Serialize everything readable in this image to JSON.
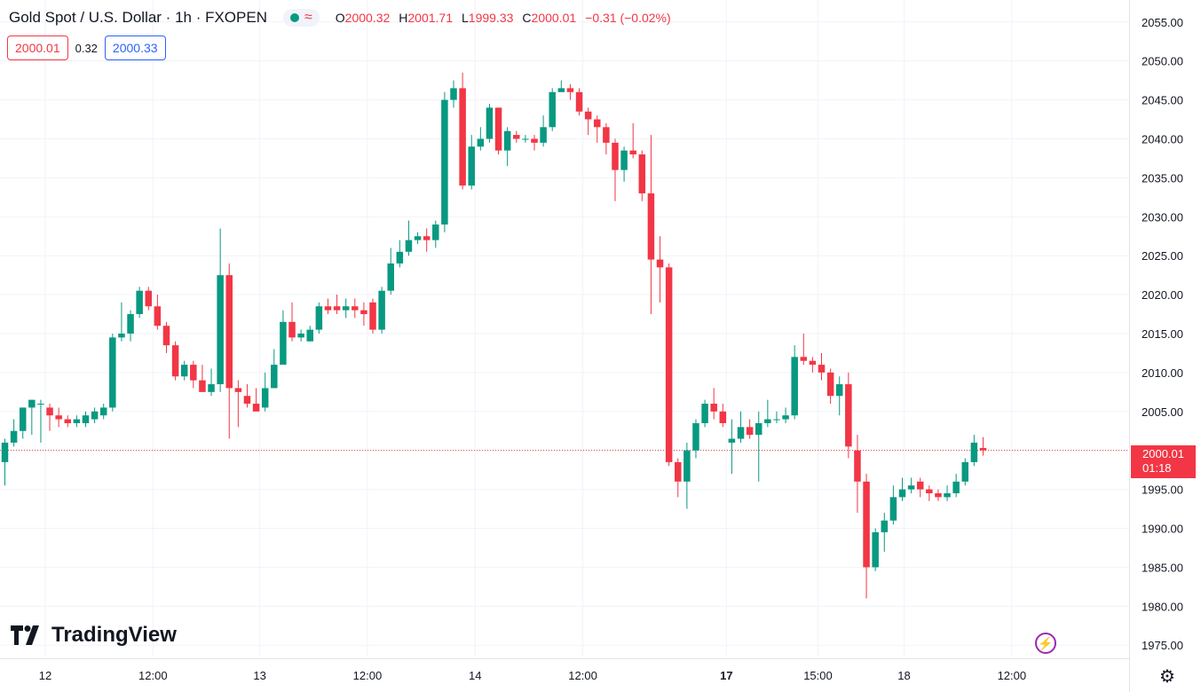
{
  "header": {
    "symbol": "Gold Spot / U.S. Dollar · 1h · FXOPEN",
    "open_label": "O",
    "open": "2000.32",
    "high_label": "H",
    "high": "2001.71",
    "low_label": "L",
    "low": "1999.33",
    "close_label": "C",
    "close": "2000.01",
    "change": "−0.31 (−0.02%)",
    "status_color": "#089981",
    "wave_icon": "≈"
  },
  "trade": {
    "sell": "2000.01",
    "spread": "0.32",
    "buy": "2000.33"
  },
  "price_tag": {
    "price": "2000.01",
    "countdown": "01:18"
  },
  "logo": "TradingView",
  "colors": {
    "up": "#089981",
    "down": "#f23645",
    "grid": "#f0f3fa",
    "text": "#131722"
  },
  "chart_data": {
    "type": "candlestick",
    "title": "Gold Spot / U.S. Dollar · 1h · FXOPEN",
    "ylim": [
      1974,
      2056
    ],
    "y_ticks": [
      1975,
      1980,
      1985,
      1990,
      1995,
      2000,
      2005,
      2010,
      2015,
      2020,
      2025,
      2030,
      2035,
      2040,
      2045,
      2050,
      2055
    ],
    "x_ticks": [
      {
        "label": "12",
        "i": 4.5,
        "bold": false
      },
      {
        "label": "12:00",
        "i": 16.5,
        "bold": false
      },
      {
        "label": "13",
        "i": 28.4,
        "bold": false
      },
      {
        "label": "12:00",
        "i": 40.4,
        "bold": false
      },
      {
        "label": "14",
        "i": 52.4,
        "bold": false
      },
      {
        "label": "12:00",
        "i": 64.4,
        "bold": false
      },
      {
        "label": "17",
        "i": 80.4,
        "bold": true
      },
      {
        "label": "15:00",
        "i": 90.6,
        "bold": false
      },
      {
        "label": "18",
        "i": 100.2,
        "bold": false
      },
      {
        "label": "12:00",
        "i": 112.2,
        "bold": false
      }
    ],
    "current_price": 2000.01,
    "candles": [
      [
        1998.5,
        2001.0,
        1995.5,
        2001.5
      ],
      [
        2001.0,
        2002.5,
        2000.5,
        2004.0
      ],
      [
        2002.5,
        2005.5,
        2001.5,
        2005.5
      ],
      [
        2005.5,
        2006.5,
        2002.0,
        2006.5
      ],
      [
        2006.0,
        2006.0,
        2001.0,
        2006.5
      ],
      [
        2005.5,
        2004.5,
        2002.5,
        2006.0
      ],
      [
        2004.5,
        2004.0,
        2003.0,
        2005.5
      ],
      [
        2004.0,
        2003.5,
        2003.0,
        2004.5
      ],
      [
        2003.5,
        2004.0,
        2003.0,
        2004.5
      ],
      [
        2003.5,
        2004.5,
        2003.0,
        2005.0
      ],
      [
        2004.0,
        2005.0,
        2003.5,
        2005.5
      ],
      [
        2004.5,
        2005.5,
        2004.0,
        2006.0
      ],
      [
        2005.5,
        2014.5,
        2005.0,
        2015.0
      ],
      [
        2014.5,
        2015.0,
        2014.0,
        2019.0
      ],
      [
        2015.0,
        2017.5,
        2014.0,
        2018.0
      ],
      [
        2017.5,
        2020.5,
        2017.0,
        2021.0
      ],
      [
        2020.5,
        2018.5,
        2018.0,
        2021.0
      ],
      [
        2018.5,
        2016.0,
        2015.5,
        2020.0
      ],
      [
        2016.0,
        2013.5,
        2012.5,
        2016.5
      ],
      [
        2013.5,
        2009.5,
        2009.0,
        2014.0
      ],
      [
        2009.5,
        2011.0,
        2009.0,
        2011.5
      ],
      [
        2011.0,
        2009.0,
        2008.0,
        2011.5
      ],
      [
        2009.0,
        2007.5,
        2007.5,
        2011.0
      ],
      [
        2007.5,
        2008.5,
        2007.0,
        2010.5
      ],
      [
        2008.5,
        2022.5,
        2007.5,
        2028.5
      ],
      [
        2022.5,
        2008.0,
        2001.5,
        2024.0
      ],
      [
        2008.0,
        2007.5,
        2003.0,
        2009.0
      ],
      [
        2007.0,
        2006.0,
        2005.5,
        2008.5
      ],
      [
        2006.0,
        2005.0,
        2005.0,
        2008.0
      ],
      [
        2005.5,
        2008.0,
        2005.0,
        2010.0
      ],
      [
        2008.0,
        2011.0,
        2008.0,
        2013.0
      ],
      [
        2011.0,
        2016.5,
        2011.0,
        2018.0
      ],
      [
        2016.5,
        2014.5,
        2014.0,
        2019.0
      ],
      [
        2014.5,
        2015.0,
        2014.0,
        2015.5
      ],
      [
        2014.0,
        2015.5,
        2014.0,
        2016.0
      ],
      [
        2015.5,
        2018.5,
        2015.0,
        2019.0
      ],
      [
        2018.5,
        2018.0,
        2017.5,
        2019.5
      ],
      [
        2018.5,
        2018.0,
        2017.5,
        2020.0
      ],
      [
        2018.0,
        2018.5,
        2017.0,
        2019.5
      ],
      [
        2018.5,
        2018.0,
        2017.0,
        2019.5
      ],
      [
        2018.0,
        2017.5,
        2016.0,
        2019.0
      ],
      [
        2019.0,
        2015.5,
        2015.0,
        2019.5
      ],
      [
        2015.5,
        2020.5,
        2015.0,
        2021.0
      ],
      [
        2020.5,
        2024.0,
        2020.0,
        2026.0
      ],
      [
        2024.0,
        2025.5,
        2023.5,
        2027.0
      ],
      [
        2025.5,
        2027.0,
        2025.0,
        2029.5
      ],
      [
        2027.0,
        2027.5,
        2026.5,
        2028.0
      ],
      [
        2027.5,
        2027.0,
        2025.5,
        2028.5
      ],
      [
        2027.0,
        2029.0,
        2026.0,
        2029.5
      ],
      [
        2029.0,
        2045.0,
        2028.0,
        2046.0
      ],
      [
        2045.0,
        2046.5,
        2044.0,
        2047.5
      ],
      [
        2046.5,
        2034.0,
        2033.5,
        2048.5
      ],
      [
        2034.0,
        2039.0,
        2033.5,
        2040.5
      ],
      [
        2039.0,
        2040.0,
        2038.5,
        2041.5
      ],
      [
        2040.0,
        2044.0,
        2039.5,
        2044.5
      ],
      [
        2044.0,
        2038.5,
        2038.0,
        2044.0
      ],
      [
        2038.5,
        2041.0,
        2036.5,
        2041.5
      ],
      [
        2040.5,
        2040.0,
        2039.5,
        2041.0
      ],
      [
        2040.0,
        2040.0,
        2039.5,
        2040.5
      ],
      [
        2040.0,
        2039.5,
        2038.5,
        2040.5
      ],
      [
        2039.5,
        2041.5,
        2039.0,
        2043.0
      ],
      [
        2041.5,
        2046.0,
        2041.0,
        2046.5
      ],
      [
        2046.0,
        2046.5,
        2046.0,
        2047.5
      ],
      [
        2046.5,
        2046.0,
        2045.0,
        2047.0
      ],
      [
        2046.0,
        2043.5,
        2043.0,
        2046.5
      ],
      [
        2043.5,
        2042.5,
        2040.5,
        2044.0
      ],
      [
        2042.5,
        2041.5,
        2039.5,
        2043.0
      ],
      [
        2041.5,
        2039.5,
        2038.0,
        2042.0
      ],
      [
        2039.5,
        2036.0,
        2032.0,
        2040.0
      ],
      [
        2036.0,
        2038.5,
        2034.5,
        2039.0
      ],
      [
        2038.5,
        2038.0,
        2037.5,
        2042.0
      ],
      [
        2038.0,
        2033.0,
        2032.0,
        2038.5
      ],
      [
        2033.0,
        2024.5,
        2017.5,
        2040.5
      ],
      [
        2024.5,
        2023.5,
        2019.0,
        2027.5
      ],
      [
        2023.5,
        1998.5,
        1998.0,
        2024.0
      ],
      [
        1998.5,
        1996.0,
        1994.0,
        1999.0
      ],
      [
        1996.0,
        2000.0,
        1992.5,
        2001.0
      ],
      [
        2000.0,
        2003.5,
        1999.0,
        2004.0
      ],
      [
        2003.5,
        2006.0,
        2003.0,
        2006.5
      ],
      [
        2006.0,
        2005.0,
        2004.0,
        2008.0
      ],
      [
        2005.0,
        2003.5,
        2003.0,
        2006.0
      ],
      [
        2001.0,
        2001.5,
        1997.0,
        2004.0
      ],
      [
        2001.5,
        2003.0,
        2001.0,
        2005.0
      ],
      [
        2003.0,
        2002.0,
        2001.5,
        2004.0
      ],
      [
        2002.0,
        2003.5,
        1996.0,
        2005.0
      ],
      [
        2003.5,
        2004.0,
        2003.0,
        2006.5
      ],
      [
        2004.0,
        2004.0,
        2003.5,
        2005.0
      ],
      [
        2004.0,
        2004.5,
        2003.5,
        2005.5
      ],
      [
        2004.5,
        2012.0,
        2004.0,
        2013.5
      ],
      [
        2012.0,
        2011.5,
        2011.0,
        2015.0
      ],
      [
        2011.5,
        2011.0,
        2010.0,
        2012.0
      ],
      [
        2011.0,
        2010.0,
        2009.0,
        2012.5
      ],
      [
        2010.0,
        2007.0,
        2006.0,
        2010.5
      ],
      [
        2007.0,
        2008.5,
        2004.5,
        2009.5
      ],
      [
        2008.5,
        2000.5,
        1999.0,
        2010.0
      ],
      [
        2000.0,
        1996.0,
        1992.0,
        2002.0
      ],
      [
        1996.0,
        1985.0,
        1981.0,
        1997.0
      ],
      [
        1985.0,
        1989.5,
        1984.5,
        1990.0
      ],
      [
        1989.5,
        1991.0,
        1987.0,
        1992.0
      ],
      [
        1991.0,
        1994.0,
        1990.5,
        1995.5
      ],
      [
        1994.0,
        1995.0,
        1993.5,
        1996.5
      ],
      [
        1995.0,
        1995.5,
        1994.5,
        1996.5
      ],
      [
        1996.0,
        1995.0,
        1994.0,
        1996.5
      ],
      [
        1995.0,
        1994.5,
        1993.5,
        1995.5
      ],
      [
        1994.5,
        1994.0,
        1993.5,
        1995.0
      ],
      [
        1994.0,
        1994.5,
        1993.5,
        1995.5
      ],
      [
        1994.5,
        1996.0,
        1994.0,
        1997.0
      ],
      [
        1996.0,
        1998.5,
        1995.5,
        1999.0
      ],
      [
        1998.5,
        2001.0,
        1998.0,
        2002.0
      ],
      [
        2000.32,
        2000.01,
        1999.33,
        2001.71
      ]
    ]
  }
}
